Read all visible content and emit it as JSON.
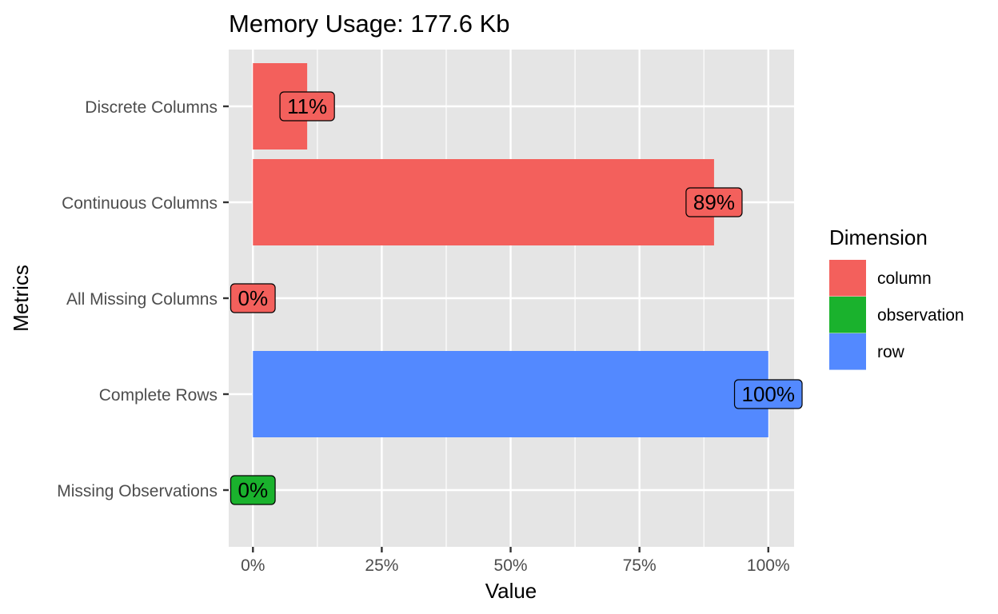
{
  "chart_data": {
    "type": "bar",
    "orientation": "horizontal",
    "title": "Memory Usage: 177.6 Kb",
    "xlabel": "Value",
    "ylabel": "Metrics",
    "xlim": [
      -0.047,
      1.05
    ],
    "x_ticks": [
      0,
      0.25,
      0.5,
      0.75,
      1
    ],
    "x_tick_labels": [
      "0%",
      "25%",
      "50%",
      "75%",
      "100%"
    ],
    "categories": [
      "Discrete Columns",
      "Continuous Columns",
      "All Missing Columns",
      "Complete Rows",
      "Missing Observations"
    ],
    "values": [
      0.1052632,
      0.8947368,
      0,
      1,
      0
    ],
    "value_labels": [
      "11%",
      "89%",
      "0%",
      "100%",
      "0%"
    ],
    "dimension": [
      "column",
      "column",
      "column",
      "row",
      "observation"
    ],
    "legend": {
      "title": "Dimension",
      "position": "right",
      "entries": [
        {
          "label": "column",
          "color": "#F8766D"
        },
        {
          "label": "observation",
          "color": "#00BA38"
        },
        {
          "label": "row",
          "color": "#619CFF"
        }
      ]
    },
    "colors": {
      "column": "#F3605C",
      "observation": "#1AB22D",
      "row": "#5389FF"
    },
    "panel_background": "#E5E5E5",
    "grid": true
  }
}
